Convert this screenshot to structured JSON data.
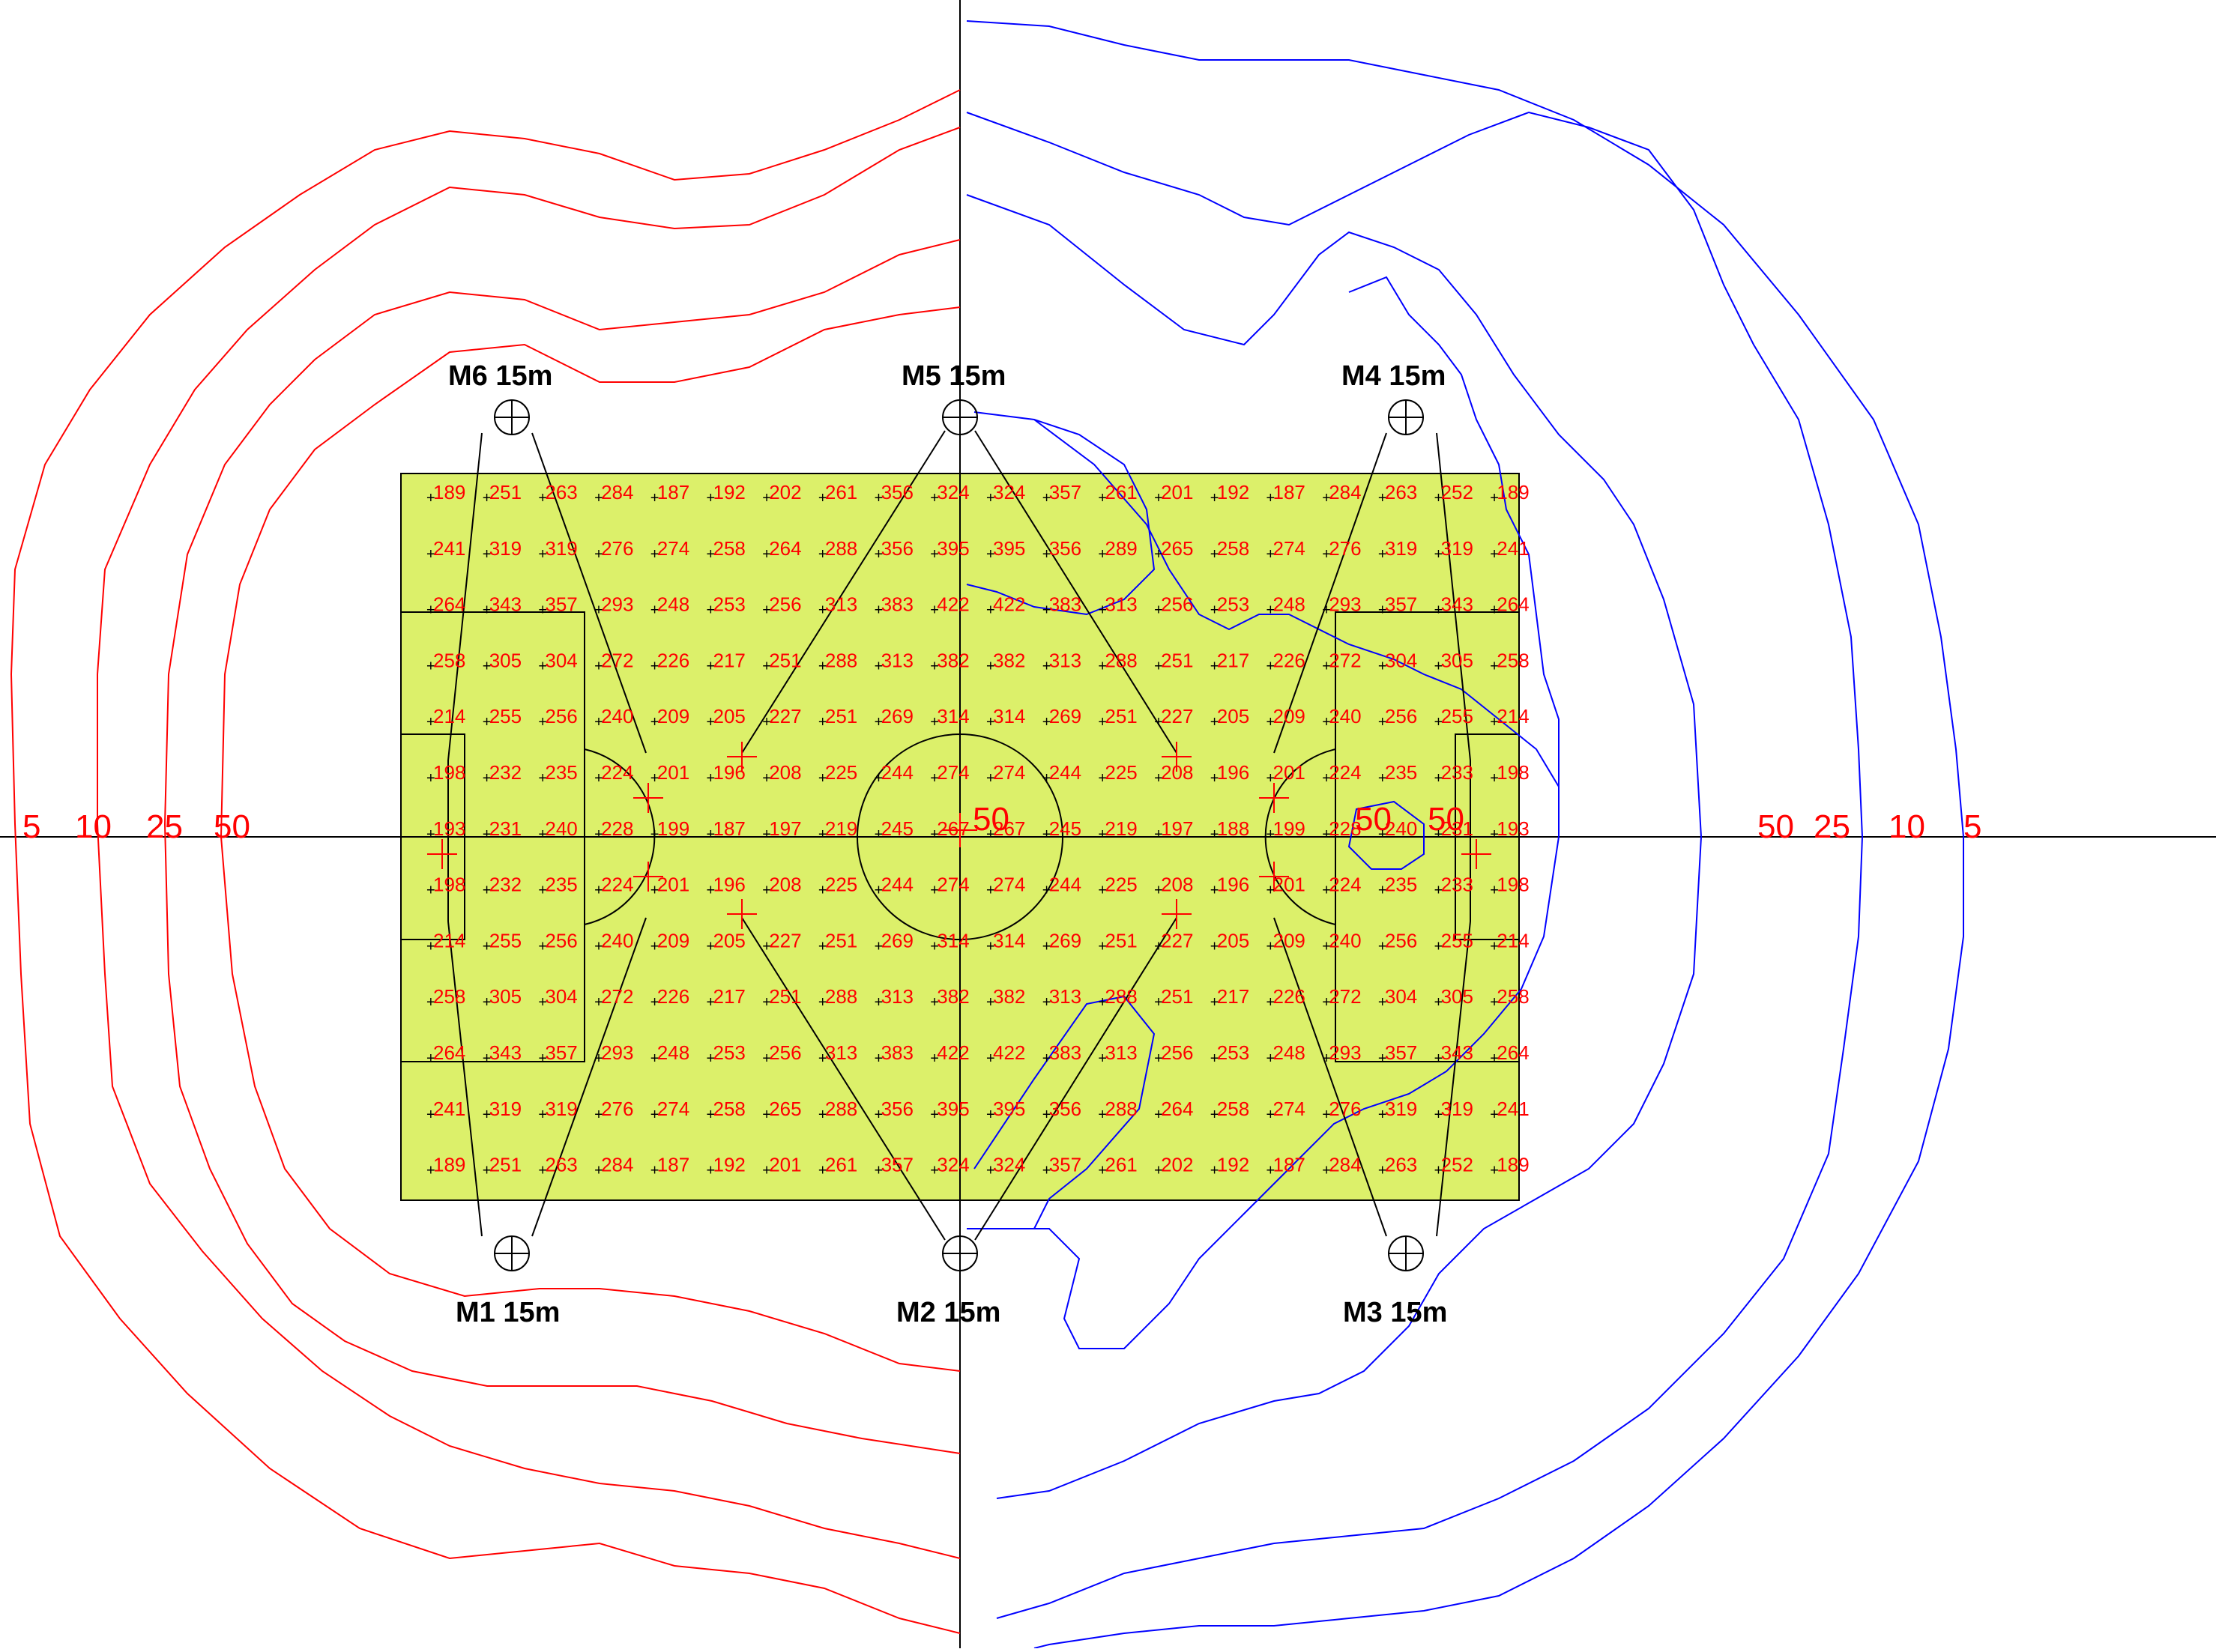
{
  "masts": [
    {
      "id": "M1",
      "label": "M1 15m",
      "icon": "mast-icon"
    },
    {
      "id": "M2",
      "label": "M2 15m",
      "icon": "mast-icon"
    },
    {
      "id": "M3",
      "label": "M3 15m",
      "icon": "mast-icon"
    },
    {
      "id": "M4",
      "label": "M4 15m",
      "icon": "mast-icon"
    },
    {
      "id": "M5",
      "label": "M5 15m",
      "icon": "mast-icon"
    },
    {
      "id": "M6",
      "label": "M6 15m",
      "icon": "mast-icon"
    }
  ],
  "contour_labels_left": [
    "5",
    "10",
    "25",
    "50"
  ],
  "contour_labels_right": [
    "50",
    "25",
    "10",
    "5"
  ],
  "center_labels": [
    "50",
    "50",
    "50"
  ],
  "colors": {
    "field": "#dcf06a",
    "lux_text": "#ff0000",
    "highlight_text": "#00c000",
    "left_contour": "#ff0000",
    "right_contour": "#0000ff",
    "lines": "#000000"
  },
  "illuminance_grid": [
    [
      "189",
      "251",
      "263",
      "284",
      "187",
      "192",
      "202",
      "261",
      "356",
      "324",
      "324",
      "357",
      "261",
      "201",
      "192",
      "187",
      "284",
      "263",
      "252",
      "189"
    ],
    [
      "241",
      "319",
      "319",
      "276",
      "274",
      "258",
      "264",
      "288",
      "356",
      "395",
      "395",
      "356",
      "289",
      "265",
      "258",
      "274",
      "276",
      "319",
      "319",
      "241"
    ],
    [
      "264",
      "343",
      "357",
      "293",
      "248",
      "253",
      "256",
      "313",
      "383",
      "422",
      "422",
      "383",
      "313",
      "256",
      "253",
      "248",
      "293",
      "357",
      "343",
      "264"
    ],
    [
      "258",
      "305",
      "304",
      "272",
      "226",
      "217",
      "251",
      "288",
      "313",
      "382",
      "382",
      "313",
      "288",
      "251",
      "217",
      "226",
      "272",
      "304",
      "305",
      "258"
    ],
    [
      "214",
      "255",
      "256",
      "240",
      "209",
      "205",
      "227",
      "251",
      "269",
      "314",
      "314",
      "269",
      "251",
      "227",
      "205",
      "209",
      "240",
      "256",
      "255",
      "214"
    ],
    [
      "198",
      "232",
      "235",
      "224",
      "201",
      "196",
      "208",
      "225",
      "244",
      "274",
      "274",
      "244",
      "225",
      "208",
      "196",
      "201",
      "224",
      "235",
      "233",
      "198"
    ],
    [
      "193",
      "231",
      "240",
      "228",
      "199",
      "187",
      "197",
      "219",
      "245",
      "267",
      "267",
      "245",
      "219",
      "197",
      "188",
      "199",
      "228",
      "240",
      "231",
      "193"
    ],
    [
      "198",
      "232",
      "235",
      "224",
      "201",
      "196",
      "208",
      "225",
      "244",
      "274",
      "274",
      "244",
      "225",
      "208",
      "196",
      "201",
      "224",
      "235",
      "233",
      "198"
    ],
    [
      "214",
      "255",
      "256",
      "240",
      "209",
      "205",
      "227",
      "251",
      "269",
      "314",
      "314",
      "269",
      "251",
      "227",
      "205",
      "209",
      "240",
      "256",
      "255",
      "214"
    ],
    [
      "258",
      "305",
      "304",
      "272",
      "226",
      "217",
      "251",
      "288",
      "313",
      "382",
      "382",
      "313",
      "288",
      "251",
      "217",
      "226",
      "272",
      "304",
      "305",
      "258"
    ],
    [
      "264",
      "343",
      "357",
      "293",
      "248",
      "253",
      "256",
      "313",
      "383",
      "422",
      "422",
      "383",
      "313",
      "256",
      "253",
      "248",
      "293",
      "357",
      "343",
      "264"
    ],
    [
      "241",
      "319",
      "319",
      "276",
      "274",
      "258",
      "265",
      "288",
      "356",
      "395",
      "395",
      "356",
      "288",
      "264",
      "258",
      "274",
      "276",
      "319",
      "319",
      "241"
    ],
    [
      "189",
      "251",
      "263",
      "284",
      "187",
      "192",
      "201",
      "261",
      "357",
      "324",
      "324",
      "357",
      "261",
      "202",
      "192",
      "187",
      "284",
      "263",
      "252",
      "189"
    ]
  ],
  "highlight_cell": {
    "row": 12,
    "col": 15
  }
}
